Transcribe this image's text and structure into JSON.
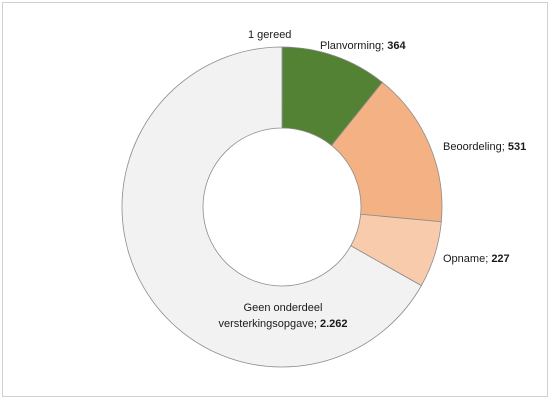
{
  "chart_data": {
    "type": "pie",
    "donut": true,
    "title": "",
    "slices": [
      {
        "label": "1 gereed",
        "value": 1,
        "color": "#2e6b1e"
      },
      {
        "label": "Planvorming",
        "value": 364,
        "value_label": "364",
        "color": "#548235"
      },
      {
        "label": "Beoordeling",
        "value": 531,
        "value_label": "531",
        "color": "#f4b183"
      },
      {
        "label": "Opname",
        "value": 227,
        "value_label": "227",
        "color": "#f8cbad"
      },
      {
        "label": "Geen onderdeel versterkingsopgave",
        "value": 2262,
        "value_label": "2.262",
        "color": "#f2f2f2"
      }
    ],
    "legend": "none"
  }
}
